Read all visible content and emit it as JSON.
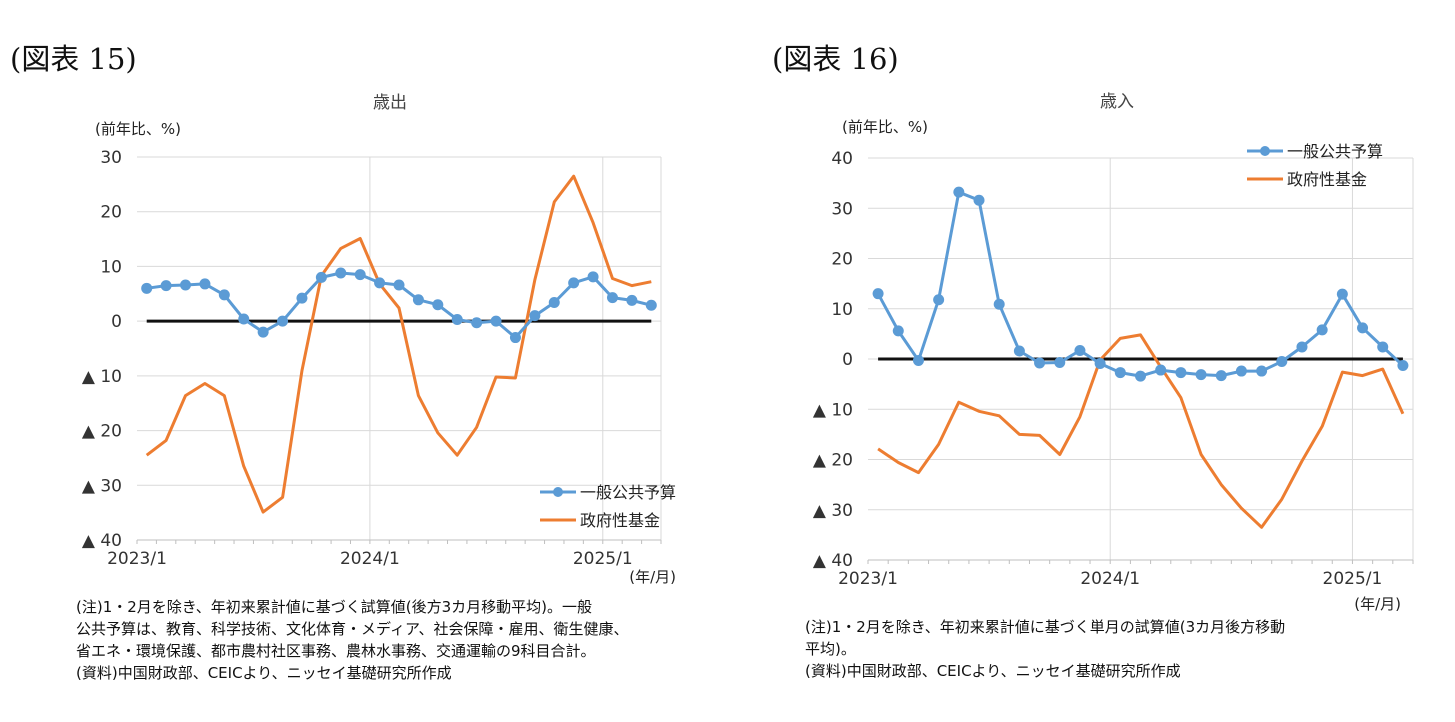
{
  "panels": [
    {
      "label": "(図表 15)",
      "notes": [
        "(注)1・2月を除き、年初来累計値に基づく試算値(後方3カ月移動平均)。一般",
        "公共予算は、教育、科学技術、文化体育・メディア、社会保障・雇用、衛生健康、",
        "省エネ・環境保護、都市農村社区事務、農林水事務、交通運輸の9科目合計。",
        "(資料)中国財政部、CEICより、ニッセイ基礎研究所作成"
      ]
    },
    {
      "label": "(図表 16)",
      "notes": [
        "(注)1・2月を除き、年初来累計値に基づく単月の試算値(3カ月後方移動",
        "平均)。",
        "(資料)中国財政部、CEICより、ニッセイ基礎研究所作成"
      ]
    }
  ],
  "chart_data": [
    {
      "type": "line",
      "title": "歳出",
      "ylabel": "(前年比、%)",
      "xlabel": "(年/月)",
      "ylim": [
        -40,
        30
      ],
      "yticks": [
        30,
        20,
        10,
        0,
        -10,
        -20,
        -30,
        -40
      ],
      "ytick_labels": [
        "30",
        "20",
        "10",
        "0",
        "▲ 10",
        "▲ 20",
        "▲ 30",
        "▲ 40"
      ],
      "x_start": "2023/1",
      "x_months": 27,
      "xticks": [
        {
          "index": 0,
          "label": "2023/1"
        },
        {
          "index": 12,
          "label": "2024/1"
        },
        {
          "index": 24,
          "label": "2025/1"
        }
      ],
      "legend_position": "bottom-right",
      "series": [
        {
          "name": "一般公共予算",
          "color": "#5b9bd5",
          "marker": true,
          "start": 0,
          "values": [
            6.0,
            6.5,
            6.6,
            6.8,
            4.8,
            0.4,
            -2.0,
            0.0,
            4.2,
            8.0,
            8.8,
            8.5,
            7.0,
            6.6,
            3.9,
            3.0,
            0.3,
            -0.3,
            0.0,
            -3.0,
            1.0,
            3.4,
            7.0,
            8.1,
            4.3,
            3.8,
            2.9
          ]
        },
        {
          "name": "政府性基金",
          "color": "#ed7d31",
          "marker": false,
          "start": 0,
          "values": [
            -24.5,
            -21.8,
            -13.6,
            -11.4,
            -13.6,
            -26.5,
            -34.9,
            -32.2,
            -9.0,
            8.3,
            13.3,
            15.1,
            6.8,
            2.4,
            -13.6,
            -20.4,
            -24.5,
            -19.4,
            -10.2,
            -10.4,
            7.6,
            21.8,
            26.5,
            18.0,
            7.8,
            6.5,
            7.2
          ]
        }
      ]
    },
    {
      "type": "line",
      "title": "歳入",
      "ylabel": "(前年比、%)",
      "xlabel": "(年/月)",
      "ylim": [
        -40,
        40
      ],
      "yticks": [
        40,
        30,
        20,
        10,
        0,
        -10,
        -20,
        -30,
        -40
      ],
      "ytick_labels": [
        "40",
        "30",
        "20",
        "10",
        "0",
        "▲ 10",
        "▲ 20",
        "▲ 30",
        "▲ 40"
      ],
      "x_start": "2023/1",
      "x_months": 27,
      "xticks": [
        {
          "index": 0,
          "label": "2023/1"
        },
        {
          "index": 12,
          "label": "2024/1"
        },
        {
          "index": 24,
          "label": "2025/1"
        }
      ],
      "legend_position": "top-right",
      "series": [
        {
          "name": "一般公共予算",
          "color": "#5b9bd5",
          "marker": true,
          "start": 0,
          "values": [
            13.0,
            5.6,
            -0.3,
            11.8,
            33.2,
            31.6,
            10.9,
            1.6,
            -0.8,
            -0.7,
            1.7,
            -0.9,
            -2.7,
            -3.4,
            -2.2,
            -2.7,
            -3.1,
            -3.3,
            -2.4,
            -2.4,
            -0.5,
            2.4,
            5.8,
            12.9,
            6.2,
            2.4,
            -1.3
          ]
        },
        {
          "name": "政府性基金",
          "color": "#ed7d31",
          "marker": false,
          "start": 0,
          "values": [
            -17.9,
            -20.6,
            -22.6,
            -17.0,
            -8.6,
            -10.4,
            -11.3,
            -15.0,
            -15.2,
            -19.0,
            -11.5,
            -0.2,
            4.1,
            4.8,
            -1.6,
            -7.7,
            -19.0,
            -25.0,
            -29.7,
            -33.5,
            -27.9,
            -20.3,
            -13.4,
            -2.6,
            -3.3,
            -2.0,
            -10.9
          ]
        }
      ]
    }
  ]
}
